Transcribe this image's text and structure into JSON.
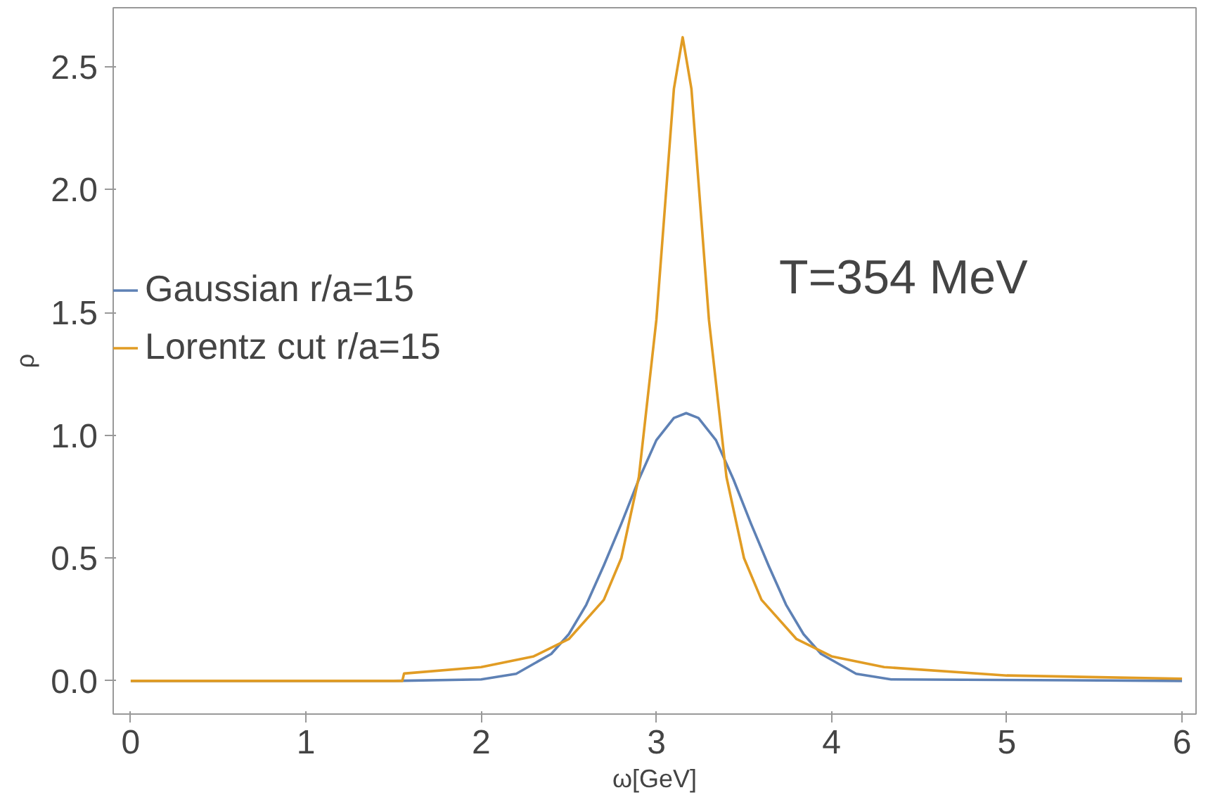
{
  "chart_data": {
    "type": "line",
    "xlabel": "ω[GeV]",
    "ylabel": "ρ",
    "xlim": [
      -0.1,
      6.08
    ],
    "ylim": [
      -0.135,
      2.74
    ],
    "xticks": [
      0,
      1,
      2,
      3,
      4,
      5,
      6
    ],
    "yticks": [
      {
        "value": 0,
        "label": "0.0"
      },
      {
        "value": 0.5,
        "label": "0.5"
      },
      {
        "value": 1,
        "label": "1.0"
      },
      {
        "value": 1.5,
        "label": "1.5"
      },
      {
        "value": 2,
        "label": "2.0"
      },
      {
        "value": 2.5,
        "label": "2.5"
      }
    ],
    "grid": false,
    "legend": "top left",
    "marker": "none",
    "line_style": "solid",
    "annotations": [
      "T=354 MeV"
    ],
    "series": [
      {
        "name": "Gaussian r/a=15",
        "color": "#5e81b5",
        "x": [
          0,
          1.5,
          2.0,
          2.2,
          2.4,
          2.5,
          2.6,
          2.7,
          2.8,
          2.9,
          3.0,
          3.1,
          3.17,
          3.24,
          3.34,
          3.44,
          3.54,
          3.64,
          3.74,
          3.84,
          3.94,
          4.14,
          4.34,
          6
        ],
        "values": [
          0,
          0,
          0.006,
          0.029,
          0.11,
          0.19,
          0.31,
          0.47,
          0.64,
          0.82,
          0.98,
          1.07,
          1.09,
          1.07,
          0.98,
          0.82,
          0.64,
          0.47,
          0.31,
          0.19,
          0.11,
          0.029,
          0.006,
          0
        ]
      },
      {
        "name": "Lorentz cut r/a=15",
        "color": "#e19c24",
        "x": [
          0,
          1.55,
          1.56,
          2.0,
          2.3,
          2.5,
          2.7,
          2.8,
          2.9,
          3.0,
          3.05,
          3.1,
          3.15,
          3.2,
          3.25,
          3.3,
          3.4,
          3.5,
          3.6,
          3.8,
          4.0,
          4.3,
          5.0,
          6.0
        ],
        "values": [
          0,
          0,
          0.03,
          0.056,
          0.1,
          0.17,
          0.33,
          0.5,
          0.83,
          1.47,
          1.94,
          2.41,
          2.62,
          2.41,
          1.94,
          1.47,
          0.83,
          0.5,
          0.33,
          0.17,
          0.1,
          0.056,
          0.022,
          0.009
        ]
      }
    ]
  }
}
